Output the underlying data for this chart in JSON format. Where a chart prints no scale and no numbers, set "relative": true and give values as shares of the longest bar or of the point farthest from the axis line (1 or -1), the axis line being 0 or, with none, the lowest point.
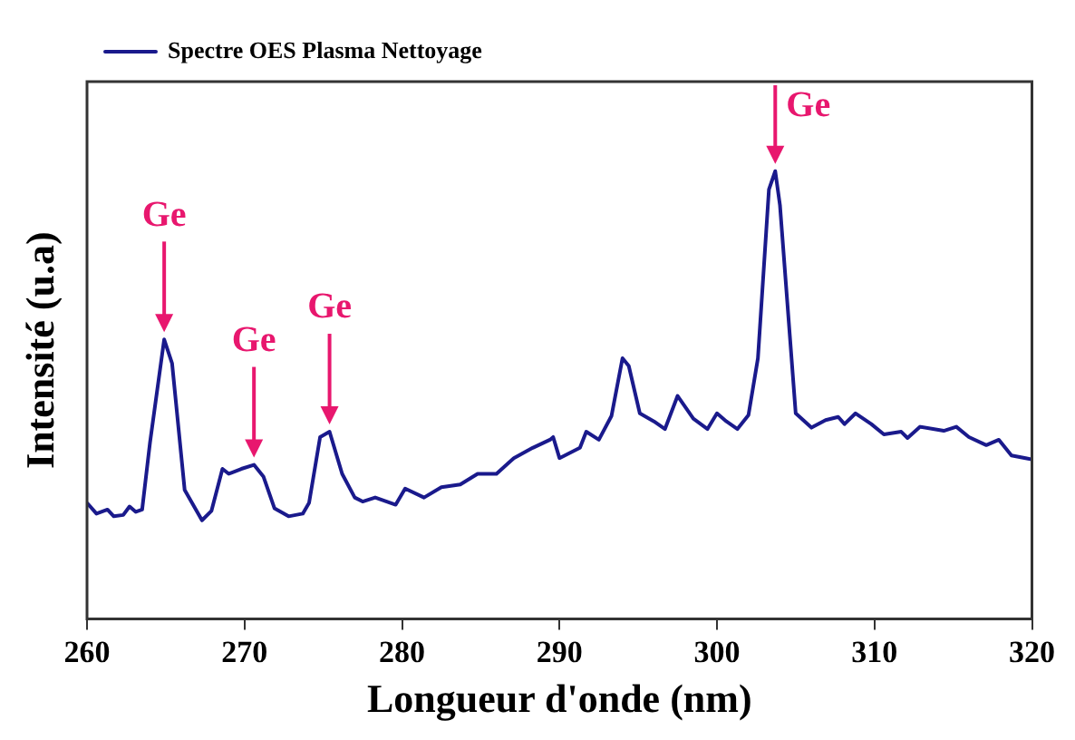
{
  "chart_data": {
    "type": "line",
    "relative": true,
    "xlabel": "Longueur d'onde (nm)",
    "ylabel": "Intensité (u.a)",
    "xlim": [
      260,
      320
    ],
    "xticks": [
      260,
      270,
      280,
      290,
      300,
      310,
      320
    ],
    "grid": false,
    "legend": "top left",
    "marker": "none",
    "line_style": "solid",
    "x": [
      260,
      260.6,
      261.3,
      261.7,
      262.3,
      262.7,
      263.1,
      263.5,
      264.0,
      264.9,
      265.4,
      266.2,
      267.3,
      267.9,
      268.6,
      269.0,
      269.8,
      270.6,
      271.2,
      271.9,
      272.8,
      273.7,
      274.1,
      274.8,
      275.4,
      276.2,
      277.0,
      277.5,
      278.3,
      279.6,
      280.2,
      281.4,
      282.5,
      283.7,
      284.8,
      286.0,
      287.1,
      288.3,
      289.4,
      289.6,
      290.0,
      291.3,
      291.7,
      292.5,
      293.3,
      294.0,
      294.4,
      295.1,
      296.0,
      296.7,
      297.5,
      298.5,
      299.4,
      300.0,
      300.6,
      301.3,
      302.0,
      302.6,
      303.3,
      303.7,
      304.0,
      305.0,
      306.0,
      306.9,
      307.7,
      308.1,
      308.8,
      309.8,
      310.6,
      311.7,
      312.1,
      312.9,
      314.4,
      315.2,
      316.0,
      317.1,
      317.9,
      318.7,
      319.6,
      320
    ],
    "series": [
      {
        "name": "Spectre OES Plasma Nettoyage",
        "color": "#1a1a8c",
        "values": [
          0.259,
          0.235,
          0.244,
          0.229,
          0.232,
          0.251,
          0.239,
          0.244,
          0.394,
          0.624,
          0.571,
          0.288,
          0.22,
          0.241,
          0.335,
          0.324,
          0.335,
          0.344,
          0.318,
          0.247,
          0.229,
          0.235,
          0.259,
          0.406,
          0.418,
          0.324,
          0.271,
          0.262,
          0.271,
          0.255,
          0.291,
          0.271,
          0.294,
          0.3,
          0.324,
          0.324,
          0.359,
          0.382,
          0.4,
          0.406,
          0.359,
          0.382,
          0.418,
          0.4,
          0.453,
          0.582,
          0.565,
          0.459,
          0.441,
          0.424,
          0.498,
          0.447,
          0.424,
          0.459,
          0.441,
          0.424,
          0.455,
          0.582,
          0.959,
          1.0,
          0.924,
          0.459,
          0.427,
          0.444,
          0.451,
          0.435,
          0.459,
          0.435,
          0.412,
          0.418,
          0.404,
          0.429,
          0.42,
          0.429,
          0.406,
          0.388,
          0.4,
          0.365,
          0.359,
          0.356
        ]
      }
    ],
    "annotations": [
      {
        "text": "Ge",
        "x": 264.9,
        "y": 0.624
      },
      {
        "text": "Ge",
        "x": 270.6,
        "y": 0.344
      },
      {
        "text": "Ge",
        "x": 275.4,
        "y": 0.418
      },
      {
        "text": "Ge",
        "x": 303.7,
        "y": 1.0
      }
    ]
  }
}
